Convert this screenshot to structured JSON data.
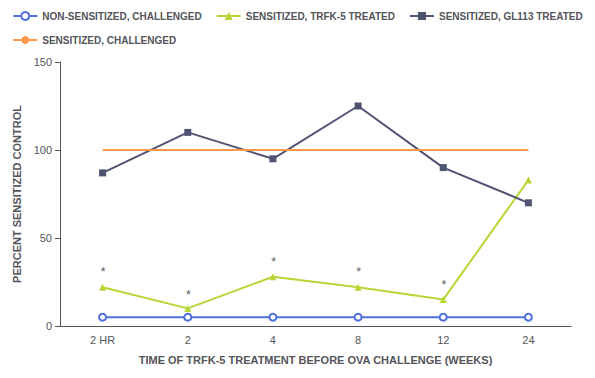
{
  "chart_data": {
    "type": "line",
    "xlabel": "TIME OF TRFK-5 TREATMENT BEFORE OVA CHALLENGE (WEEKS)",
    "ylabel": "PERCENT SENSITIZED CONTROL",
    "categories": [
      "2 HR",
      "2",
      "4",
      "8",
      "12",
      "24"
    ],
    "series": [
      {
        "name": "NON-SENSITIZED, CHALLENGED",
        "values": [
          5,
          5,
          5,
          5,
          5,
          5
        ],
        "marker": "circle",
        "line_style": "solid"
      },
      {
        "name": "SENSITIZED, TRFK-5 TREATED",
        "values": [
          22,
          10,
          28,
          22,
          15,
          83
        ],
        "marker": "triangle",
        "line_style": "solid"
      },
      {
        "name": "SENSITIZED, GL113 TREATED",
        "values": [
          87,
          110,
          95,
          125,
          90,
          70
        ],
        "marker": "square",
        "line_style": "solid"
      },
      {
        "name": "SENSITIZED, CHALLENGED",
        "values": [
          100,
          100,
          100,
          100,
          100,
          100
        ],
        "marker": "none",
        "line_style": "solid"
      }
    ],
    "annotations": [
      {
        "x": "2 HR",
        "y": 27,
        "text": "*"
      },
      {
        "x": "2",
        "y": 14,
        "text": "*"
      },
      {
        "x": "4",
        "y": 33,
        "text": "*"
      },
      {
        "x": "8",
        "y": 27,
        "text": "*"
      },
      {
        "x": "12",
        "y": 20,
        "text": "*"
      }
    ],
    "ylim": [
      0,
      150
    ],
    "yticks": [
      0,
      50,
      100,
      150
    ],
    "grid": false,
    "legend": "top"
  }
}
